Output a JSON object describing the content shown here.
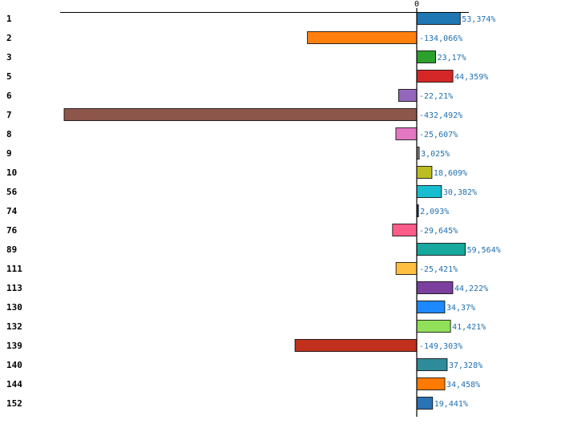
{
  "chart_data": {
    "type": "bar",
    "orientation": "horizontal",
    "zero_tick_label": "0",
    "categories": [
      "1",
      "2",
      "3",
      "5",
      "6",
      "7",
      "8",
      "9",
      "10",
      "56",
      "74",
      "76",
      "89",
      "111",
      "113",
      "130",
      "132",
      "139",
      "140",
      "144",
      "152"
    ],
    "values": [
      53.374,
      -134.066,
      23.17,
      44.359,
      -22.21,
      -432.492,
      -25.607,
      3.025,
      18.609,
      30.382,
      2.093,
      -29.645,
      59.564,
      -25.421,
      44.222,
      34.37,
      41.421,
      -149.303,
      37.328,
      34.458,
      19.441
    ],
    "value_labels": [
      "53,374%",
      "-134,066%",
      "23,17%",
      "44,359%",
      "-22,21%",
      "-432,492%",
      "-25,607%",
      "3,025%",
      "18,609%",
      "30,382%",
      "2,093%",
      "-29,645%",
      "59,564%",
      "-25,421%",
      "44,222%",
      "34,37%",
      "41,421%",
      "-149,303%",
      "37,328%",
      "34,458%",
      "19,441%"
    ],
    "colors": [
      "#1f77b4",
      "#ff7f0e",
      "#2ca02c",
      "#d62728",
      "#9467bd",
      "#8c564b",
      "#e377c2",
      "#7f7f7f",
      "#bcbd22",
      "#17becf",
      "#1f3f7f",
      "#ff5c8a",
      "#17a89e",
      "#ffbf40",
      "#7b3f9e",
      "#1e88ff",
      "#90e05a",
      "#c0301c",
      "#2e8b9a",
      "#ff7a00",
      "#2a73b5"
    ],
    "value_label_color": "#1f6fb0",
    "xlim": [
      -440,
      65
    ],
    "grid": false,
    "legend": "none"
  }
}
